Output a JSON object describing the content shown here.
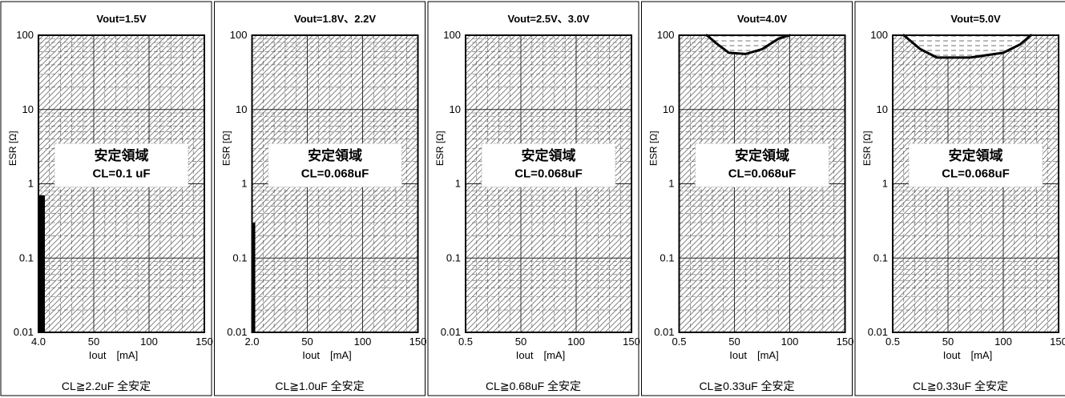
{
  "chart_data": [
    {
      "type": "area",
      "title": "Vout=1.5V",
      "xlabel": "Iout　[mA]",
      "ylabel": "ESR [Ω]",
      "x_start_label": "4.0",
      "x_ticks": [
        "50",
        "100",
        "150"
      ],
      "xlim": [
        0,
        150
      ],
      "y_ticks": [
        "100",
        "10",
        "1",
        "0.1",
        "0.01"
      ],
      "ylim": [
        0.01,
        100
      ],
      "y_scale": "log",
      "region_label": "安定領域",
      "capacitance_label": "CL=0.1 uF",
      "footer": "CL≧2.2uF  全安定",
      "unstable_bar": {
        "x_to": 4.0,
        "esr_to": 0.7,
        "thickness": "thick"
      },
      "unstable_curve": []
    },
    {
      "type": "area",
      "title": "Vout=1.8V、2.2V",
      "xlabel": "Iout　[mA]",
      "ylabel": "ESR [Ω]",
      "x_start_label": "2.0",
      "x_ticks": [
        "50",
        "100",
        "150"
      ],
      "xlim": [
        0,
        150
      ],
      "y_ticks": [
        "100",
        "10",
        "1",
        "0.1",
        "0.01"
      ],
      "ylim": [
        0.01,
        100
      ],
      "y_scale": "log",
      "region_label": "安定領域",
      "capacitance_label": "CL=0.068uF",
      "footer": "CL≧1.0uF  全安定",
      "unstable_bar": {
        "x_to": 2.0,
        "esr_to": 0.3,
        "thickness": "thin"
      },
      "unstable_curve": []
    },
    {
      "type": "area",
      "title": "Vout=2.5V、3.0V",
      "xlabel": "Iout　[mA]",
      "ylabel": "ESR [Ω]",
      "x_start_label": "0.5",
      "x_ticks": [
        "50",
        "100",
        "150"
      ],
      "xlim": [
        0,
        150
      ],
      "y_ticks": [
        "100",
        "10",
        "1",
        "0.1",
        "0.01"
      ],
      "ylim": [
        0.01,
        100
      ],
      "y_scale": "log",
      "region_label": "安定領域",
      "capacitance_label": "CL=0.068uF",
      "footer": "CL≧0.68uF  全安定",
      "unstable_bar": null,
      "unstable_curve": []
    },
    {
      "type": "area",
      "title": "Vout=4.0V",
      "xlabel": "Iout　[mA]",
      "ylabel": "ESR [Ω]",
      "x_start_label": "0.5",
      "x_ticks": [
        "50",
        "100",
        "150"
      ],
      "xlim": [
        0,
        150
      ],
      "y_ticks": [
        "100",
        "10",
        "1",
        "0.1",
        "0.01"
      ],
      "ylim": [
        0.01,
        100
      ],
      "y_scale": "log",
      "region_label": "安定領域",
      "capacitance_label": "CL=0.068uF",
      "footer": "CL≧0.33uF  全安定",
      "unstable_bar": null,
      "unstable_curve": [
        [
          25,
          100
        ],
        [
          35,
          75
        ],
        [
          45,
          58
        ],
        [
          60,
          56
        ],
        [
          75,
          65
        ],
        [
          90,
          90
        ],
        [
          100,
          100
        ]
      ]
    },
    {
      "type": "area",
      "title": "Vout=5.0V",
      "xlabel": "Iout　[mA]",
      "ylabel": "ESR [Ω]",
      "x_start_label": "0.5",
      "x_ticks": [
        "50",
        "100",
        "150"
      ],
      "xlim": [
        0,
        150
      ],
      "y_ticks": [
        "100",
        "10",
        "1",
        "0.1",
        "0.01"
      ],
      "ylim": [
        0.01,
        100
      ],
      "y_scale": "log",
      "region_label": "安定領域",
      "capacitance_label": "CL=0.068uF",
      "footer": "CL≧0.33uF  全安定",
      "unstable_bar": null,
      "unstable_curve": [
        [
          10,
          100
        ],
        [
          25,
          65
        ],
        [
          40,
          50
        ],
        [
          70,
          50
        ],
        [
          100,
          58
        ],
        [
          115,
          75
        ],
        [
          125,
          100
        ]
      ]
    }
  ]
}
